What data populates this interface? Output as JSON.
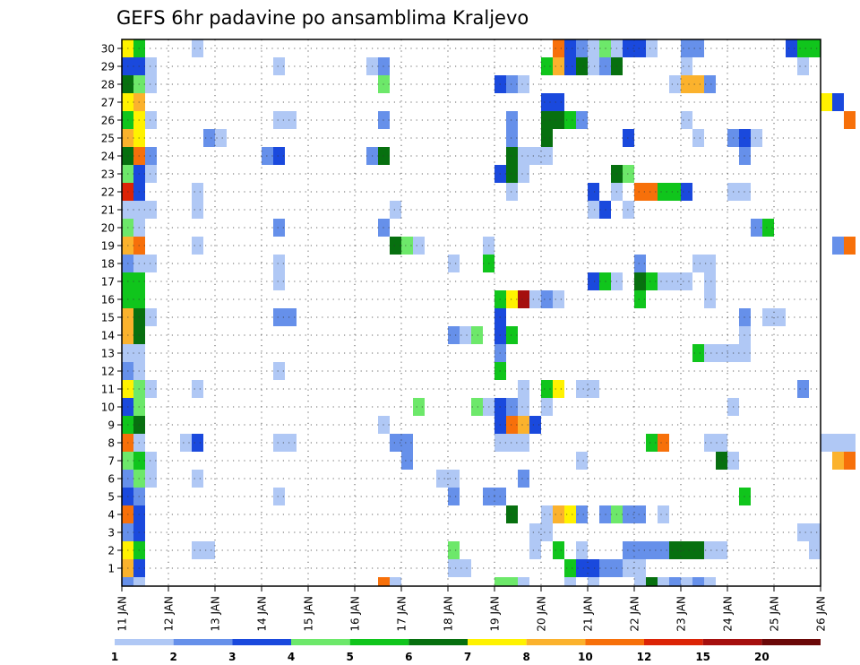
{
  "chart_data": {
    "type": "heatmap",
    "title": "GEFS 6hr padavine po ansamblima Kraljevo",
    "xlabel": "",
    "ylabel": "",
    "x_tick_labels": [
      "11 JAN",
      "12 JAN",
      "13 JAN",
      "14 JAN",
      "15 JAN",
      "16 JAN",
      "17 JAN",
      "18 JAN",
      "19 JAN",
      "20 JAN",
      "21 JAN",
      "22 JAN",
      "23 JAN",
      "24 JAN",
      "25 JAN",
      "26 JAN"
    ],
    "y_tick_labels": [
      "1",
      "2",
      "3",
      "4",
      "5",
      "6",
      "7",
      "8",
      "9",
      "10",
      "11",
      "12",
      "13",
      "14",
      "15",
      "16",
      "17",
      "18",
      "19",
      "20",
      "21",
      "22",
      "23",
      "24",
      "25",
      "26",
      "27",
      "28",
      "29",
      "30"
    ],
    "y_range": [
      0,
      30
    ],
    "time_steps_per_day": 4,
    "grid": "dotted",
    "colorbar": {
      "position": "bottom",
      "labels": [
        "1",
        "2",
        "3",
        "4",
        "5",
        "6",
        "7",
        "8",
        "10",
        "12",
        "15",
        "20"
      ],
      "colors": [
        "#b0c8f5",
        "#6690ea",
        "#1a49dd",
        "#6de86a",
        "#10c51c",
        "#07700f",
        "#fff200",
        "#fbb22d",
        "#f7700a",
        "#dc2406",
        "#a50f0e",
        "#6b0808"
      ]
    },
    "cells_note": "each cell = [day offset from 11 JAN (steps of 0.25), member row, colour class 1-12]",
    "cells": [
      [
        0,
        30,
        7
      ],
      [
        0,
        29,
        3
      ],
      [
        0,
        28,
        6
      ],
      [
        0,
        27,
        7
      ],
      [
        0,
        26,
        5
      ],
      [
        0,
        25,
        8
      ],
      [
        0,
        24,
        6
      ],
      [
        0,
        23,
        4
      ],
      [
        0,
        22,
        10
      ],
      [
        0,
        21,
        1
      ],
      [
        0,
        20,
        4
      ],
      [
        0,
        19,
        8
      ],
      [
        0,
        18,
        2
      ],
      [
        0,
        17,
        5
      ],
      [
        0,
        16,
        5
      ],
      [
        0,
        15,
        8
      ],
      [
        0,
        14,
        8
      ],
      [
        0,
        13,
        1
      ],
      [
        0,
        12,
        2
      ],
      [
        0,
        11,
        7
      ],
      [
        0,
        10,
        3
      ],
      [
        0,
        9,
        5
      ],
      [
        0,
        8,
        9
      ],
      [
        0,
        7,
        4
      ],
      [
        0,
        6,
        2
      ],
      [
        0,
        5,
        3
      ],
      [
        0,
        4,
        9
      ],
      [
        0,
        3,
        2
      ],
      [
        0,
        2,
        7
      ],
      [
        0,
        1,
        8
      ],
      [
        0,
        0,
        2
      ],
      [
        0.25,
        30,
        5
      ],
      [
        0.25,
        29,
        3
      ],
      [
        0.25,
        28,
        4
      ],
      [
        0.25,
        27,
        8
      ],
      [
        0.25,
        26,
        7
      ],
      [
        0.25,
        25,
        7
      ],
      [
        0.25,
        24,
        9
      ],
      [
        0.25,
        23,
        3
      ],
      [
        0.25,
        22,
        3
      ],
      [
        0.25,
        21,
        1
      ],
      [
        0.25,
        20,
        1
      ],
      [
        0.25,
        19,
        9
      ],
      [
        0.25,
        18,
        1
      ],
      [
        0.25,
        17,
        5
      ],
      [
        0.25,
        16,
        5
      ],
      [
        0.25,
        15,
        6
      ],
      [
        0.25,
        14,
        6
      ],
      [
        0.25,
        13,
        1
      ],
      [
        0.25,
        12,
        1
      ],
      [
        0.25,
        11,
        4
      ],
      [
        0.25,
        10,
        4
      ],
      [
        0.25,
        9,
        6
      ],
      [
        0.25,
        8,
        1
      ],
      [
        0.25,
        7,
        5
      ],
      [
        0.25,
        6,
        4
      ],
      [
        0.25,
        5,
        2
      ],
      [
        0.25,
        4,
        3
      ],
      [
        0.25,
        3,
        3
      ],
      [
        0.25,
        2,
        5
      ],
      [
        0.25,
        1,
        3
      ],
      [
        0.25,
        0,
        1
      ],
      [
        0.5,
        29,
        1
      ],
      [
        0.5,
        28,
        1
      ],
      [
        0.5,
        26,
        1
      ],
      [
        0.5,
        24,
        2
      ],
      [
        0.5,
        23,
        1
      ],
      [
        0.5,
        21,
        1
      ],
      [
        0.5,
        18,
        1
      ],
      [
        0.5,
        15,
        1
      ],
      [
        0.5,
        11,
        1
      ],
      [
        0.5,
        7,
        1
      ],
      [
        0.5,
        6,
        1
      ],
      [
        1.25,
        8,
        1
      ],
      [
        1.5,
        30,
        1
      ],
      [
        1.5,
        22,
        1
      ],
      [
        1.5,
        21,
        1
      ],
      [
        1.5,
        19,
        1
      ],
      [
        1.5,
        11,
        1
      ],
      [
        1.5,
        8,
        3
      ],
      [
        1.5,
        6,
        1
      ],
      [
        1.5,
        2,
        1
      ],
      [
        1.75,
        25,
        2
      ],
      [
        1.75,
        2,
        1
      ],
      [
        2,
        25,
        1
      ],
      [
        3,
        24,
        2
      ],
      [
        3.25,
        24,
        3
      ],
      [
        3.25,
        29,
        1
      ],
      [
        3.25,
        26,
        1
      ],
      [
        3.5,
        26,
        1
      ],
      [
        3.25,
        20,
        2
      ],
      [
        3.25,
        18,
        1
      ],
      [
        3.25,
        17,
        1
      ],
      [
        3.25,
        15,
        2
      ],
      [
        3.5,
        15,
        2
      ],
      [
        3.25,
        12,
        1
      ],
      [
        3.25,
        8,
        1
      ],
      [
        3.5,
        8,
        1
      ],
      [
        3.25,
        5,
        1
      ],
      [
        5.25,
        29,
        1
      ],
      [
        5.25,
        24,
        2
      ],
      [
        5.5,
        29,
        2
      ],
      [
        5.5,
        28,
        4
      ],
      [
        5.5,
        26,
        2
      ],
      [
        5.5,
        24,
        6
      ],
      [
        5.5,
        20,
        2
      ],
      [
        5.5,
        9,
        1
      ],
      [
        5.5,
        0,
        9
      ],
      [
        5.75,
        21,
        1
      ],
      [
        5.75,
        8,
        2
      ],
      [
        5.75,
        0,
        1
      ],
      [
        5.75,
        19,
        6
      ],
      [
        6,
        19,
        4
      ],
      [
        6,
        8,
        2
      ],
      [
        6,
        7,
        2
      ],
      [
        6.25,
        19,
        1
      ],
      [
        6.25,
        10,
        4
      ],
      [
        6.75,
        6,
        1
      ],
      [
        7,
        6,
        1
      ],
      [
        7,
        18,
        1
      ],
      [
        7,
        14,
        2
      ],
      [
        7,
        5,
        2
      ],
      [
        7,
        2,
        4
      ],
      [
        7,
        1,
        1
      ],
      [
        7.25,
        14,
        1
      ],
      [
        7.25,
        1,
        1
      ],
      [
        7.5,
        14,
        4
      ],
      [
        7.5,
        10,
        4
      ],
      [
        7.75,
        18,
        5
      ],
      [
        7.75,
        10,
        1
      ],
      [
        7.75,
        19,
        1
      ],
      [
        7.75,
        5,
        2
      ],
      [
        8,
        5,
        2
      ],
      [
        8,
        0,
        4
      ],
      [
        8.25,
        0,
        4
      ],
      [
        8,
        28,
        3
      ],
      [
        8,
        23,
        3
      ],
      [
        8,
        16,
        5
      ],
      [
        8,
        15,
        3
      ],
      [
        8,
        14,
        3
      ],
      [
        8,
        13,
        2
      ],
      [
        8,
        12,
        5
      ],
      [
        8,
        10,
        3
      ],
      [
        8,
        9,
        3
      ],
      [
        8,
        8,
        1
      ],
      [
        8.25,
        28,
        2
      ],
      [
        8.25,
        24,
        6
      ],
      [
        8.25,
        25,
        2
      ],
      [
        8.25,
        26,
        2
      ],
      [
        8.25,
        23,
        6
      ],
      [
        8.25,
        22,
        1
      ],
      [
        8.25,
        16,
        7
      ],
      [
        8.25,
        14,
        5
      ],
      [
        8.25,
        9,
        9
      ],
      [
        8.25,
        8,
        1
      ],
      [
        8.25,
        10,
        2
      ],
      [
        8.25,
        4,
        6
      ],
      [
        8.5,
        28,
        1
      ],
      [
        8.5,
        24,
        1
      ],
      [
        8.5,
        23,
        1
      ],
      [
        8.5,
        16,
        11
      ],
      [
        8.5,
        11,
        1
      ],
      [
        8.5,
        10,
        1
      ],
      [
        8.5,
        9,
        8
      ],
      [
        8.5,
        8,
        1
      ],
      [
        8.5,
        6,
        2
      ],
      [
        8.5,
        0,
        1
      ],
      [
        8.75,
        24,
        1
      ],
      [
        8.75,
        16,
        1
      ],
      [
        8.75,
        9,
        3
      ],
      [
        8.75,
        3,
        1
      ],
      [
        8.75,
        2,
        1
      ],
      [
        9,
        24,
        1
      ],
      [
        9,
        16,
        2
      ],
      [
        9,
        29,
        5
      ],
      [
        9,
        27,
        3
      ],
      [
        9,
        26,
        6
      ],
      [
        9,
        25,
        6
      ],
      [
        9,
        11,
        5
      ],
      [
        9,
        10,
        1
      ],
      [
        9,
        3,
        1
      ],
      [
        9,
        4,
        1
      ],
      [
        9.25,
        30,
        9
      ],
      [
        9.25,
        29,
        8
      ],
      [
        9.25,
        27,
        3
      ],
      [
        9.25,
        26,
        6
      ],
      [
        9.25,
        16,
        1
      ],
      [
        9.25,
        11,
        7
      ],
      [
        9.25,
        4,
        8
      ],
      [
        9.25,
        2,
        5
      ],
      [
        9.5,
        30,
        3
      ],
      [
        9.5,
        29,
        3
      ],
      [
        9.5,
        26,
        5
      ],
      [
        9.5,
        4,
        7
      ],
      [
        9.5,
        1,
        5
      ],
      [
        9.5,
        0,
        1
      ],
      [
        9.75,
        30,
        2
      ],
      [
        9.75,
        29,
        6
      ],
      [
        9.75,
        26,
        2
      ],
      [
        9.75,
        11,
        1
      ],
      [
        9.75,
        7,
        1
      ],
      [
        9.75,
        4,
        2
      ],
      [
        9.75,
        1,
        3
      ],
      [
        9.75,
        2,
        1
      ],
      [
        10,
        30,
        1
      ],
      [
        10,
        29,
        1
      ],
      [
        10,
        21,
        1
      ],
      [
        10,
        22,
        3
      ],
      [
        10,
        17,
        3
      ],
      [
        10,
        11,
        1
      ],
      [
        10,
        1,
        3
      ],
      [
        10,
        0,
        1
      ],
      [
        10.25,
        30,
        4
      ],
      [
        10.25,
        29,
        2
      ],
      [
        10.25,
        21,
        3
      ],
      [
        10.25,
        17,
        5
      ],
      [
        10.25,
        4,
        2
      ],
      [
        10.25,
        1,
        2
      ],
      [
        10.5,
        29,
        6
      ],
      [
        10.5,
        17,
        1
      ],
      [
        10.5,
        4,
        4
      ],
      [
        10.5,
        1,
        2
      ],
      [
        10.5,
        30,
        1
      ],
      [
        10.5,
        23,
        6
      ],
      [
        10.5,
        22,
        1
      ],
      [
        10.75,
        30,
        3
      ],
      [
        10.75,
        25,
        3
      ],
      [
        10.75,
        23,
        4
      ],
      [
        10.75,
        21,
        1
      ],
      [
        10.75,
        4,
        2
      ],
      [
        10.75,
        2,
        2
      ],
      [
        10.75,
        1,
        1
      ],
      [
        11,
        30,
        3
      ],
      [
        11,
        22,
        9
      ],
      [
        11,
        17,
        6
      ],
      [
        11,
        18,
        2
      ],
      [
        11,
        16,
        5
      ],
      [
        11,
        4,
        2
      ],
      [
        11,
        2,
        2
      ],
      [
        11,
        1,
        1
      ],
      [
        11,
        0,
        1
      ],
      [
        11.25,
        30,
        1
      ],
      [
        11.25,
        22,
        9
      ],
      [
        11.25,
        17,
        5
      ],
      [
        11.25,
        8,
        5
      ],
      [
        11.25,
        2,
        2
      ],
      [
        11.25,
        0,
        6
      ],
      [
        11.5,
        22,
        5
      ],
      [
        11.5,
        17,
        1
      ],
      [
        11.5,
        8,
        9
      ],
      [
        11.5,
        4,
        1
      ],
      [
        11.5,
        2,
        2
      ],
      [
        11.5,
        0,
        1
      ],
      [
        11.75,
        22,
        5
      ],
      [
        11.75,
        17,
        1
      ],
      [
        11.75,
        2,
        6
      ],
      [
        11.75,
        0,
        2
      ],
      [
        12,
        30,
        2
      ],
      [
        12,
        29,
        1
      ],
      [
        12,
        26,
        1
      ],
      [
        12,
        22,
        3
      ],
      [
        12,
        17,
        1
      ],
      [
        12,
        2,
        6
      ],
      [
        12,
        0,
        1
      ],
      [
        12.25,
        30,
        2
      ],
      [
        12.25,
        25,
        1
      ],
      [
        12.25,
        2,
        6
      ],
      [
        12.25,
        0,
        2
      ],
      [
        11.75,
        28,
        1
      ],
      [
        12,
        28,
        8
      ],
      [
        12.25,
        28,
        8
      ],
      [
        12.5,
        28,
        2
      ],
      [
        12.5,
        16,
        1
      ],
      [
        12.25,
        13,
        5
      ],
      [
        12.5,
        13,
        1
      ],
      [
        12.75,
        13,
        1
      ],
      [
        13,
        13,
        1
      ],
      [
        13.25,
        13,
        1
      ],
      [
        12.5,
        8,
        1
      ],
      [
        12.5,
        2,
        1
      ],
      [
        12.5,
        0,
        1
      ],
      [
        12.75,
        8,
        1
      ],
      [
        12.75,
        7,
        6
      ],
      [
        12.75,
        2,
        1
      ],
      [
        12.25,
        18,
        1
      ],
      [
        12.5,
        18,
        1
      ],
      [
        12.5,
        17,
        1
      ],
      [
        13,
        22,
        1
      ],
      [
        13.25,
        22,
        1
      ],
      [
        13,
        25,
        2
      ],
      [
        13.25,
        25,
        3
      ],
      [
        13.5,
        25,
        1
      ],
      [
        13,
        10,
        1
      ],
      [
        13,
        7,
        1
      ],
      [
        13.25,
        24,
        2
      ],
      [
        13.25,
        14,
        1
      ],
      [
        13.25,
        5,
        5
      ],
      [
        13.5,
        20,
        2
      ],
      [
        13.75,
        20,
        5
      ],
      [
        13.75,
        15,
        1
      ],
      [
        14,
        15,
        1
      ],
      [
        13.25,
        15,
        2
      ],
      [
        14.25,
        30,
        3
      ],
      [
        14.5,
        30,
        5
      ],
      [
        14.75,
        30,
        5
      ],
      [
        14.5,
        29,
        1
      ],
      [
        14.5,
        11,
        2
      ],
      [
        14.5,
        3,
        1
      ],
      [
        14.75,
        3,
        1
      ],
      [
        14.75,
        2,
        1
      ],
      [
        15,
        27,
        7
      ],
      [
        15.25,
        27,
        3
      ],
      [
        15.5,
        26,
        9
      ],
      [
        15.5,
        19,
        9
      ],
      [
        15.25,
        19,
        2
      ],
      [
        15,
        8,
        1
      ],
      [
        15.25,
        8,
        1
      ],
      [
        15.5,
        8,
        1
      ],
      [
        15.5,
        7,
        9
      ],
      [
        15.25,
        7,
        8
      ]
    ]
  }
}
